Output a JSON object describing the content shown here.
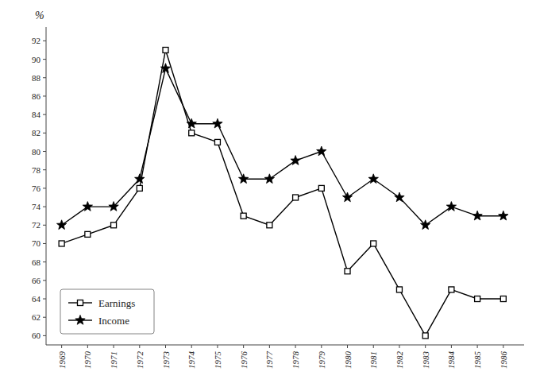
{
  "chart_data": {
    "type": "line",
    "x": [
      1969,
      1970,
      1971,
      1972,
      1973,
      1974,
      1975,
      1976,
      1977,
      1978,
      1979,
      1980,
      1981,
      1982,
      1983,
      1984,
      1985,
      1986
    ],
    "series": [
      {
        "name": "Earnings",
        "color": "black",
        "marker": "square",
        "values": [
          70,
          71,
          72,
          76,
          91,
          82,
          81,
          73,
          72,
          75,
          76,
          67,
          70,
          65,
          60,
          65,
          64,
          64
        ]
      },
      {
        "name": "Income",
        "color": "black",
        "marker": "star",
        "values": [
          72,
          74,
          74,
          77,
          89,
          83,
          83,
          77,
          77,
          79,
          80,
          75,
          77,
          75,
          72,
          74,
          73,
          73
        ]
      }
    ],
    "ylabel": "%",
    "xlim": [
      1968.4,
      1986.8
    ],
    "xticks": [
      1969,
      1970,
      1971,
      1972,
      1973,
      1974,
      1975,
      1976,
      1977,
      1978,
      1979,
      1980,
      1981,
      1982,
      1983,
      1984,
      1985,
      1986
    ],
    "ylim": [
      59,
      93.5
    ],
    "yticks": [
      60,
      62,
      64,
      66,
      68,
      70,
      72,
      74,
      76,
      78,
      80,
      82,
      84,
      86,
      88,
      90,
      92
    ],
    "grid": false,
    "legend": "lower left"
  }
}
